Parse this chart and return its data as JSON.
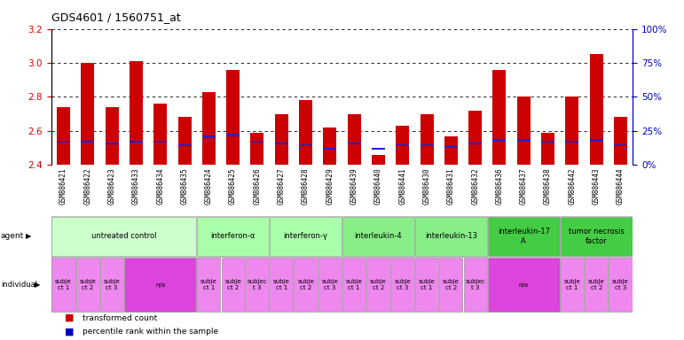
{
  "title": "GDS4601 / 1560751_at",
  "samples": [
    "GSM886421",
    "GSM886422",
    "GSM886423",
    "GSM886433",
    "GSM886434",
    "GSM886435",
    "GSM886424",
    "GSM886425",
    "GSM886426",
    "GSM886427",
    "GSM886428",
    "GSM886429",
    "GSM886439",
    "GSM886440",
    "GSM886441",
    "GSM886430",
    "GSM886431",
    "GSM886432",
    "GSM886436",
    "GSM886437",
    "GSM886438",
    "GSM886442",
    "GSM886443",
    "GSM886444"
  ],
  "bar_values": [
    2.74,
    3.0,
    2.74,
    3.01,
    2.76,
    2.68,
    2.83,
    2.96,
    2.59,
    2.7,
    2.78,
    2.62,
    2.7,
    2.46,
    2.63,
    2.7,
    2.57,
    2.72,
    2.96,
    2.8,
    2.59,
    2.8,
    3.05,
    2.68
  ],
  "percentile_values": [
    2.535,
    2.535,
    2.525,
    2.535,
    2.535,
    2.515,
    2.565,
    2.575,
    2.535,
    2.525,
    2.515,
    2.495,
    2.525,
    2.495,
    2.515,
    2.515,
    2.505,
    2.525,
    2.545,
    2.545,
    2.535,
    2.535,
    2.545,
    2.515
  ],
  "ymin": 2.4,
  "ymax": 3.2,
  "yticks_left": [
    2.4,
    2.6,
    2.8,
    3.0,
    3.2
  ],
  "yticks_right_pct": [
    0,
    25,
    50,
    75,
    100
  ],
  "bar_color": "#cc0000",
  "percentile_color": "#2222cc",
  "bar_width": 0.55,
  "agent_groups": [
    {
      "label": "untreated control",
      "start": 0,
      "end": 6,
      "color": "#ccffcc"
    },
    {
      "label": "interferon-α",
      "start": 6,
      "end": 9,
      "color": "#aaffaa"
    },
    {
      "label": "interferon-γ",
      "start": 9,
      "end": 12,
      "color": "#aaffaa"
    },
    {
      "label": "interleukin-4",
      "start": 12,
      "end": 15,
      "color": "#88ee88"
    },
    {
      "label": "interleukin-13",
      "start": 15,
      "end": 18,
      "color": "#88ee88"
    },
    {
      "label": "interleukin-17\nA",
      "start": 18,
      "end": 21,
      "color": "#44cc44"
    },
    {
      "label": "tumor necrosis\nfactor",
      "start": 21,
      "end": 24,
      "color": "#44cc44"
    }
  ],
  "individual_groups": [
    {
      "label": "subje\nct 1",
      "start": 0,
      "end": 1,
      "color": "#ee88ee"
    },
    {
      "label": "subje\nct 2",
      "start": 1,
      "end": 2,
      "color": "#ee88ee"
    },
    {
      "label": "subje\nct 3",
      "start": 2,
      "end": 3,
      "color": "#ee88ee"
    },
    {
      "label": "n/a",
      "start": 3,
      "end": 6,
      "color": "#dd44dd"
    },
    {
      "label": "subje\nct 1",
      "start": 6,
      "end": 7,
      "color": "#ee88ee"
    },
    {
      "label": "subje\nct 2",
      "start": 7,
      "end": 8,
      "color": "#ee88ee"
    },
    {
      "label": "subjec\nt 3",
      "start": 8,
      "end": 9,
      "color": "#ee88ee"
    },
    {
      "label": "subje\nct 1",
      "start": 9,
      "end": 10,
      "color": "#ee88ee"
    },
    {
      "label": "subje\nct 2",
      "start": 10,
      "end": 11,
      "color": "#ee88ee"
    },
    {
      "label": "subje\nct 3",
      "start": 11,
      "end": 12,
      "color": "#ee88ee"
    },
    {
      "label": "subje\nct 1",
      "start": 12,
      "end": 13,
      "color": "#ee88ee"
    },
    {
      "label": "subje\nct 2",
      "start": 13,
      "end": 14,
      "color": "#ee88ee"
    },
    {
      "label": "subje\nct 3",
      "start": 14,
      "end": 15,
      "color": "#ee88ee"
    },
    {
      "label": "subje\nct 1",
      "start": 15,
      "end": 16,
      "color": "#ee88ee"
    },
    {
      "label": "subje\nct 2",
      "start": 16,
      "end": 17,
      "color": "#ee88ee"
    },
    {
      "label": "subjec\nt 3",
      "start": 17,
      "end": 18,
      "color": "#ee88ee"
    },
    {
      "label": "n/a",
      "start": 18,
      "end": 21,
      "color": "#dd44dd"
    },
    {
      "label": "subje\nct 1",
      "start": 21,
      "end": 22,
      "color": "#ee88ee"
    },
    {
      "label": "subje\nct 2",
      "start": 22,
      "end": 23,
      "color": "#ee88ee"
    },
    {
      "label": "subje\nct 3",
      "start": 23,
      "end": 24,
      "color": "#ee88ee"
    }
  ],
  "xtick_bg_color": "#cccccc",
  "bar_color_red": "#cc0000",
  "percentile_color_blue": "#0000bb"
}
